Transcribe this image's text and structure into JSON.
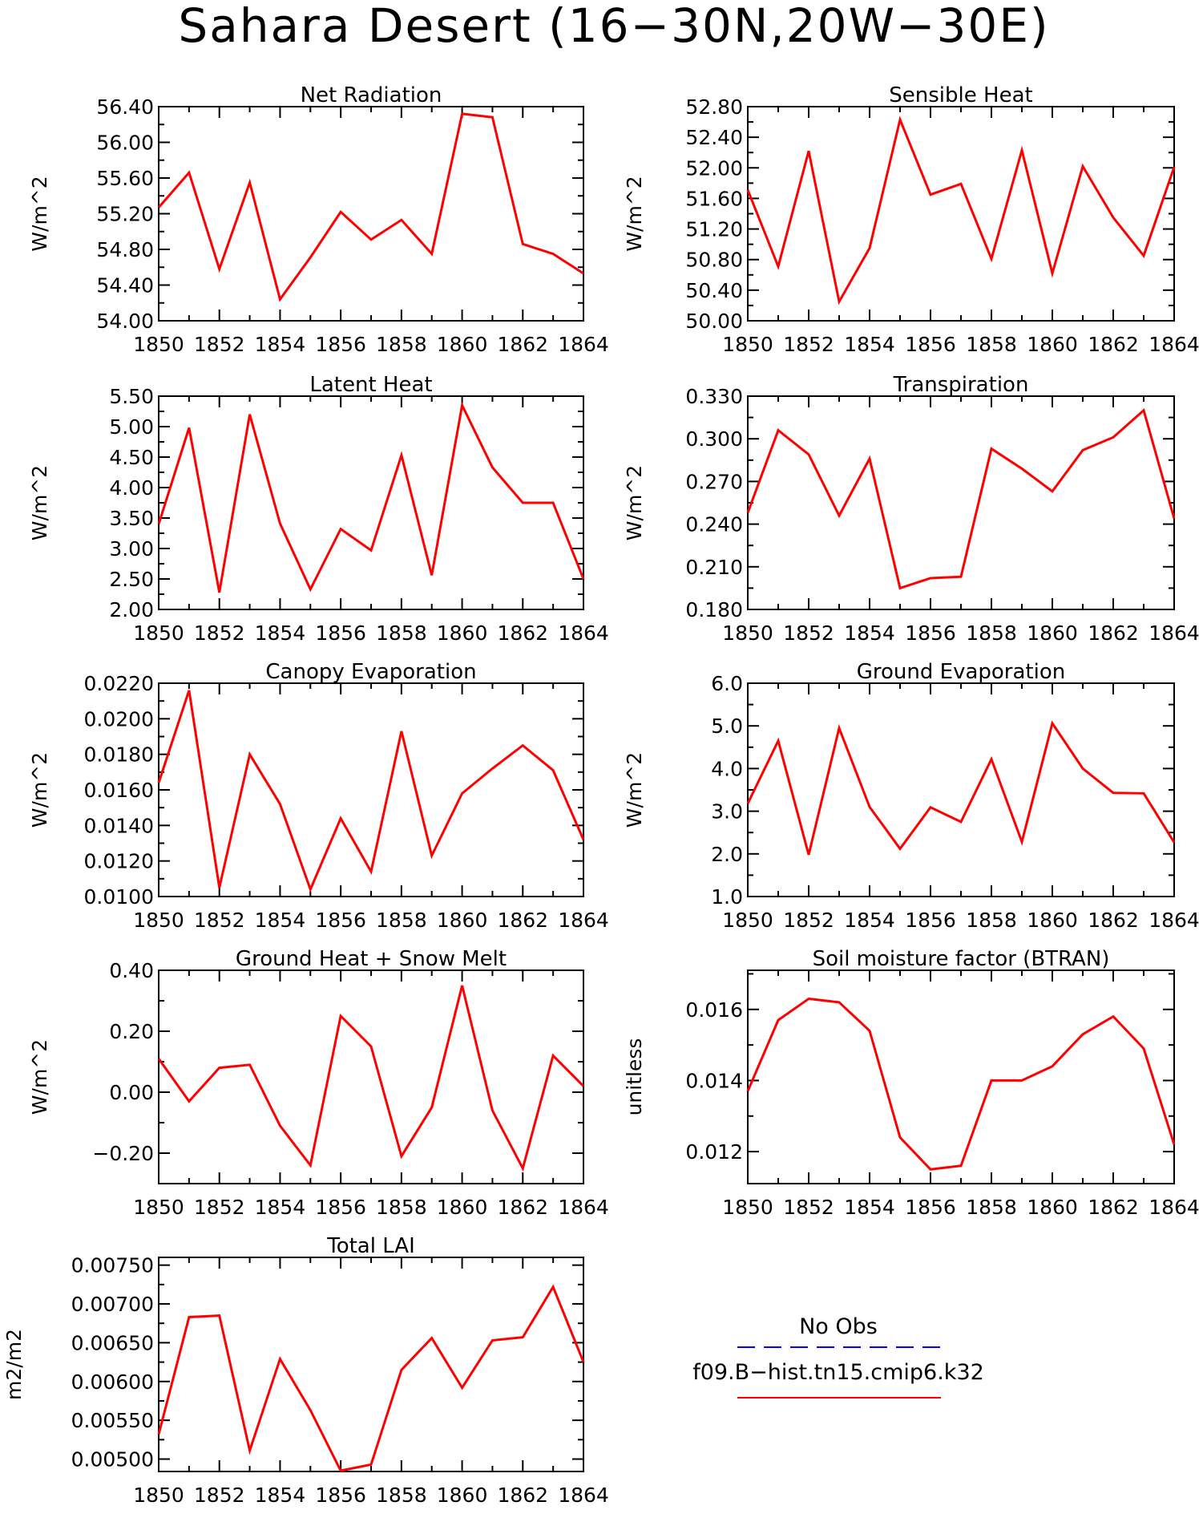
{
  "title": "Sahara Desert (16−30N,20W−30E)",
  "series_color": "#ff0000",
  "obs_color": "#0000ff",
  "legend": {
    "obs_label": "No Obs",
    "model_label": "f09.B−hist.tn15.cmip6.k32"
  },
  "chart_data": [
    {
      "type": "line",
      "title": "Net Radiation",
      "ylabel": "W/m^2",
      "ylim": [
        54.0,
        56.4
      ],
      "yticks": [
        "54.00",
        "54.40",
        "54.80",
        "55.20",
        "55.60",
        "56.00",
        "56.40"
      ],
      "xlim": [
        1850,
        1864
      ],
      "xticks": [
        "1850",
        "1852",
        "1854",
        "1856",
        "1858",
        "1860",
        "1862",
        "1864"
      ],
      "x": [
        1850,
        1851,
        1852,
        1853,
        1854,
        1855,
        1856,
        1857,
        1858,
        1859,
        1860,
        1861,
        1862,
        1863,
        1864
      ],
      "series": [
        {
          "values": [
            55.27,
            55.66,
            54.58,
            55.55,
            54.24,
            54.71,
            55.22,
            54.91,
            55.13,
            54.75,
            56.32,
            56.28,
            54.86,
            54.75,
            54.53
          ]
        }
      ]
    },
    {
      "type": "line",
      "title": "Sensible Heat",
      "ylabel": "W/m^2",
      "ylim": [
        50.0,
        52.8
      ],
      "yticks": [
        "50.00",
        "50.40",
        "50.80",
        "51.20",
        "51.60",
        "52.00",
        "52.40",
        "52.80"
      ],
      "xlim": [
        1850,
        1864
      ],
      "xticks": [
        "1850",
        "1852",
        "1854",
        "1856",
        "1858",
        "1860",
        "1862",
        "1864"
      ],
      "x": [
        1850,
        1851,
        1852,
        1853,
        1854,
        1855,
        1856,
        1857,
        1858,
        1859,
        1860,
        1861,
        1862,
        1863,
        1864
      ],
      "series": [
        {
          "values": [
            51.71,
            50.71,
            52.22,
            50.25,
            50.95,
            52.63,
            51.65,
            51.79,
            50.81,
            52.23,
            50.62,
            52.02,
            51.35,
            50.85,
            52.01
          ]
        }
      ]
    },
    {
      "type": "line",
      "title": "Latent Heat",
      "ylabel": "W/m^2",
      "ylim": [
        2.0,
        5.5
      ],
      "yticks": [
        "2.00",
        "2.50",
        "3.00",
        "3.50",
        "4.00",
        "4.50",
        "5.00",
        "5.50"
      ],
      "xlim": [
        1850,
        1864
      ],
      "xticks": [
        "1850",
        "1852",
        "1854",
        "1856",
        "1858",
        "1860",
        "1862",
        "1864"
      ],
      "x": [
        1850,
        1851,
        1852,
        1853,
        1854,
        1855,
        1856,
        1857,
        1858,
        1859,
        1860,
        1861,
        1862,
        1863,
        1864
      ],
      "series": [
        {
          "values": [
            3.4,
            4.98,
            2.28,
            5.2,
            3.41,
            2.33,
            3.32,
            2.97,
            4.53,
            2.56,
            5.35,
            4.33,
            3.75,
            3.75,
            2.5
          ]
        }
      ]
    },
    {
      "type": "line",
      "title": "Transpiration",
      "ylabel": "W/m^2",
      "ylim": [
        0.18,
        0.33
      ],
      "yticks": [
        "0.180",
        "0.210",
        "0.240",
        "0.270",
        "0.300",
        "0.330"
      ],
      "xlim": [
        1850,
        1864
      ],
      "xticks": [
        "1850",
        "1852",
        "1854",
        "1856",
        "1858",
        "1860",
        "1862",
        "1864"
      ],
      "x": [
        1850,
        1851,
        1852,
        1853,
        1854,
        1855,
        1856,
        1857,
        1858,
        1859,
        1860,
        1861,
        1862,
        1863,
        1864
      ],
      "series": [
        {
          "values": [
            0.248,
            0.306,
            0.289,
            0.246,
            0.286,
            0.195,
            0.202,
            0.203,
            0.293,
            0.279,
            0.263,
            0.292,
            0.301,
            0.32,
            0.244
          ]
        }
      ]
    },
    {
      "type": "line",
      "title": "Canopy Evaporation",
      "ylabel": "W/m^2",
      "ylim": [
        0.01,
        0.022
      ],
      "yticks": [
        "0.0100",
        "0.0120",
        "0.0140",
        "0.0160",
        "0.0180",
        "0.0200",
        "0.0220"
      ],
      "xlim": [
        1850,
        1864
      ],
      "xticks": [
        "1850",
        "1852",
        "1854",
        "1856",
        "1858",
        "1860",
        "1862",
        "1864"
      ],
      "x": [
        1850,
        1851,
        1852,
        1853,
        1854,
        1855,
        1856,
        1857,
        1858,
        1859,
        1860,
        1861,
        1862,
        1863,
        1864
      ],
      "series": [
        {
          "values": [
            0.0164,
            0.0216,
            0.0105,
            0.018,
            0.0152,
            0.0104,
            0.0144,
            0.0114,
            0.0193,
            0.0123,
            0.0158,
            0.0172,
            0.0185,
            0.0171,
            0.0132
          ]
        }
      ]
    },
    {
      "type": "line",
      "title": "Ground Evaporation",
      "ylabel": "W/m^2",
      "ylim": [
        1.0,
        6.0
      ],
      "yticks": [
        "1.0",
        "2.0",
        "3.0",
        "4.0",
        "5.0",
        "6.0"
      ],
      "xlim": [
        1850,
        1864
      ],
      "xticks": [
        "1850",
        "1852",
        "1854",
        "1856",
        "1858",
        "1860",
        "1862",
        "1864"
      ],
      "x": [
        1850,
        1851,
        1852,
        1853,
        1854,
        1855,
        1856,
        1857,
        1858,
        1859,
        1860,
        1861,
        1862,
        1863,
        1864
      ],
      "series": [
        {
          "values": [
            3.18,
            4.65,
            1.98,
            4.95,
            3.1,
            2.12,
            3.09,
            2.75,
            4.22,
            2.28,
            5.06,
            4.0,
            3.43,
            3.42,
            2.27
          ]
        }
      ]
    },
    {
      "type": "line",
      "title": "Ground Heat + Snow Melt",
      "ylabel": "W/m^2",
      "ylim": [
        -0.3,
        0.4
      ],
      "yticks": [
        "−0.20",
        "0.00",
        "0.20",
        "0.40"
      ],
      "ytick_values": [
        -0.2,
        0.0,
        0.2,
        0.4
      ],
      "xlim": [
        1850,
        1864
      ],
      "xticks": [
        "1850",
        "1852",
        "1854",
        "1856",
        "1858",
        "1860",
        "1862",
        "1864"
      ],
      "x": [
        1850,
        1851,
        1852,
        1853,
        1854,
        1855,
        1856,
        1857,
        1858,
        1859,
        1860,
        1861,
        1862,
        1863,
        1864
      ],
      "series": [
        {
          "values": [
            0.11,
            -0.03,
            0.08,
            0.09,
            -0.11,
            -0.24,
            0.25,
            0.15,
            -0.21,
            -0.05,
            0.35,
            -0.06,
            -0.25,
            0.12,
            0.02
          ]
        }
      ]
    },
    {
      "type": "line",
      "title": "Soil moisture factor (BTRAN)",
      "ylabel": "unitless",
      "ylim": [
        0.0111,
        0.0171
      ],
      "yticks": [
        "0.012",
        "0.014",
        "0.016"
      ],
      "ytick_values": [
        0.012,
        0.014,
        0.016
      ],
      "xlim": [
        1850,
        1864
      ],
      "xticks": [
        "1850",
        "1852",
        "1854",
        "1856",
        "1858",
        "1860",
        "1862",
        "1864"
      ],
      "x": [
        1850,
        1851,
        1852,
        1853,
        1854,
        1855,
        1856,
        1857,
        1858,
        1859,
        1860,
        1861,
        1862,
        1863,
        1864
      ],
      "series": [
        {
          "values": [
            0.0137,
            0.0157,
            0.0163,
            0.0162,
            0.0154,
            0.0124,
            0.0115,
            0.0116,
            0.014,
            0.014,
            0.0144,
            0.0153,
            0.0158,
            0.0149,
            0.0122
          ]
        }
      ]
    },
    {
      "type": "line",
      "title": "Total LAI",
      "ylabel": "m2/m2",
      "ylim": [
        0.00484,
        0.0076
      ],
      "yticks": [
        "0.00500",
        "0.00550",
        "0.00600",
        "0.00650",
        "0.00700",
        "0.00750"
      ],
      "ytick_values": [
        0.005,
        0.0055,
        0.006,
        0.0065,
        0.007,
        0.0075
      ],
      "xlim": [
        1850,
        1864
      ],
      "xticks": [
        "1850",
        "1852",
        "1854",
        "1856",
        "1858",
        "1860",
        "1862",
        "1864"
      ],
      "x": [
        1850,
        1851,
        1852,
        1853,
        1854,
        1855,
        1856,
        1857,
        1858,
        1859,
        1860,
        1861,
        1862,
        1863,
        1864
      ],
      "series": [
        {
          "values": [
            0.00532,
            0.00683,
            0.00685,
            0.00511,
            0.00629,
            0.00563,
            0.00485,
            0.00493,
            0.00615,
            0.00656,
            0.00592,
            0.00653,
            0.00657,
            0.00722,
            0.00625
          ]
        }
      ]
    }
  ]
}
